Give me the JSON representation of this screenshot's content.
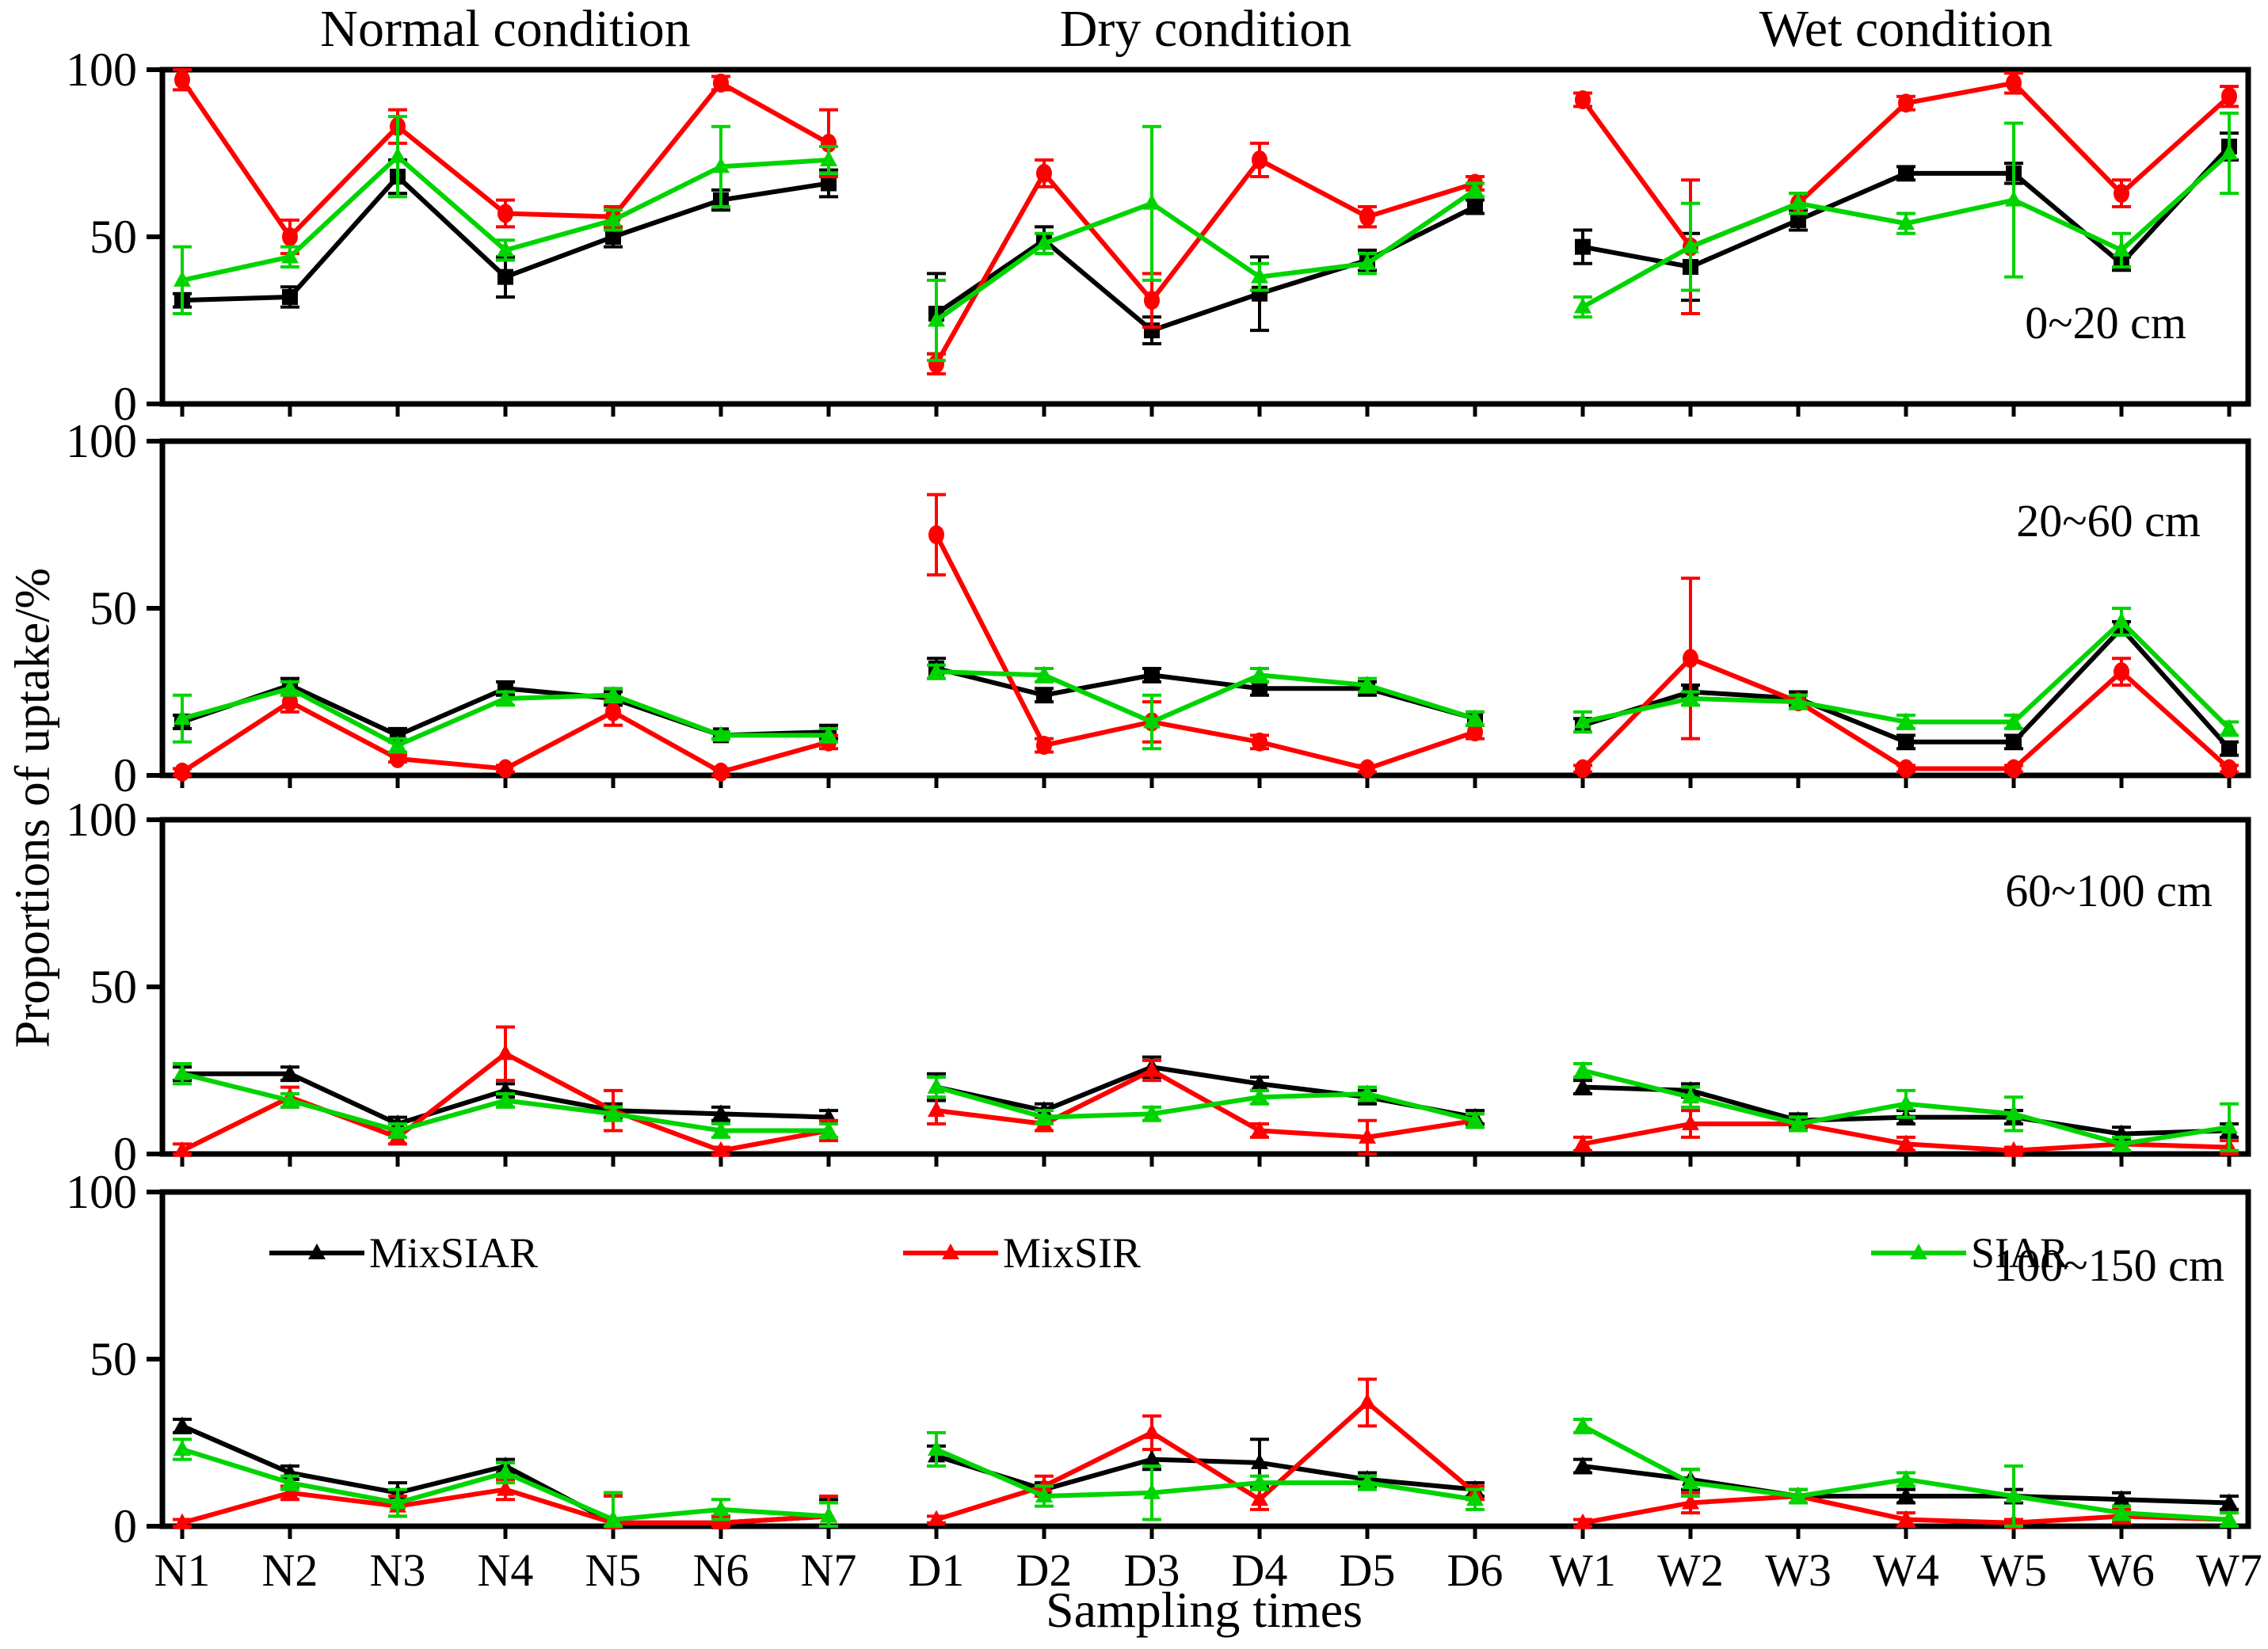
{
  "figure": {
    "ylabel": "Proportions of uptake/%",
    "xlabel": "Sampling times",
    "condition_titles": [
      "Normal condition",
      "Dry condition",
      "Wet condition"
    ],
    "axis_color": "#000000",
    "background": "#ffffff"
  },
  "legend": {
    "items": [
      {
        "label": "MixSIAR",
        "color": "#000000"
      },
      {
        "label": "MixSIR",
        "color": "#ff0000"
      },
      {
        "label": "SIAR",
        "color": "#00d400"
      }
    ]
  },
  "chart_data": [
    {
      "type": "line",
      "depth_label": "0~20 cm",
      "ylim": [
        0,
        100
      ],
      "yticks": [
        0,
        50,
        100
      ],
      "grid": false,
      "categories": [
        "N1",
        "N2",
        "N3",
        "N4",
        "N5",
        "N6",
        "N7",
        "D1",
        "D2",
        "D3",
        "D4",
        "D5",
        "D6",
        "W1",
        "W2",
        "W3",
        "W4",
        "W5",
        "W6",
        "W7"
      ],
      "groups": [
        [
          0,
          7
        ],
        [
          7,
          13
        ],
        [
          13,
          20
        ]
      ],
      "series": [
        {
          "name": "MixSIAR",
          "color": "#000000",
          "marker": "square",
          "values": [
            31,
            32,
            68,
            38,
            50,
            61,
            66,
            27,
            49,
            22,
            33,
            43,
            59,
            47,
            41,
            55,
            69,
            69,
            42,
            77
          ],
          "errors": [
            2,
            3,
            5,
            6,
            3,
            3,
            4,
            12,
            4,
            4,
            11,
            3,
            2,
            5,
            10,
            3,
            2,
            3,
            2,
            4
          ]
        },
        {
          "name": "MixSIR",
          "color": "#ff0000",
          "marker": "circle",
          "values": [
            97,
            50,
            83,
            57,
            56,
            96,
            78,
            12,
            69,
            31,
            73,
            56,
            66,
            91,
            47,
            60,
            90,
            96,
            63,
            92
          ],
          "errors": [
            3,
            5,
            5,
            4,
            3,
            2,
            10,
            3,
            4,
            8,
            5,
            3,
            2,
            2,
            20,
            3,
            2,
            3,
            4,
            3
          ]
        },
        {
          "name": "SIAR",
          "color": "#00d400",
          "marker": "triangle",
          "values": [
            37,
            44,
            74,
            46,
            55,
            71,
            73,
            25,
            48,
            60,
            38,
            42,
            64,
            29,
            47,
            60,
            54,
            61,
            46,
            75
          ],
          "errors": [
            10,
            3,
            12,
            3,
            3,
            12,
            4,
            12,
            3,
            23,
            4,
            3,
            2,
            3,
            13,
            3,
            3,
            23,
            5,
            12
          ]
        }
      ]
    },
    {
      "type": "line",
      "depth_label": "20~60 cm",
      "ylim": [
        0,
        100
      ],
      "yticks": [
        0,
        50,
        100
      ],
      "grid": false,
      "categories": [
        "N1",
        "N2",
        "N3",
        "N4",
        "N5",
        "N6",
        "N7",
        "D1",
        "D2",
        "D3",
        "D4",
        "D5",
        "D6",
        "W1",
        "W2",
        "W3",
        "W4",
        "W5",
        "W6",
        "W7"
      ],
      "groups": [
        [
          0,
          7
        ],
        [
          7,
          13
        ],
        [
          13,
          20
        ]
      ],
      "series": [
        {
          "name": "MixSIAR",
          "color": "#000000",
          "marker": "square",
          "values": [
            16,
            27,
            12,
            26,
            23,
            12,
            13,
            32,
            24,
            30,
            26,
            26,
            17,
            15,
            25,
            23,
            10,
            10,
            44,
            8
          ],
          "errors": [
            2,
            2,
            2,
            2,
            2,
            1,
            2,
            3,
            2,
            2,
            2,
            2,
            2,
            2,
            2,
            2,
            2,
            2,
            2,
            2
          ]
        },
        {
          "name": "MixSIR",
          "color": "#ff0000",
          "marker": "circle",
          "values": [
            1,
            22,
            5,
            2,
            19,
            1,
            10,
            72,
            9,
            16,
            10,
            2,
            13,
            2,
            35,
            22,
            2,
            2,
            31,
            2
          ],
          "errors": [
            1,
            3,
            1,
            1,
            4,
            1,
            2,
            12,
            2,
            6,
            2,
            1,
            2,
            1,
            24,
            2,
            1,
            1,
            4,
            1
          ]
        },
        {
          "name": "SIAR",
          "color": "#00d400",
          "marker": "triangle",
          "values": [
            17,
            26,
            9,
            23,
            24,
            12,
            12,
            31,
            30,
            16,
            30,
            27,
            17,
            16,
            23,
            22,
            16,
            16,
            46,
            14
          ],
          "errors": [
            7,
            2,
            2,
            2,
            2,
            1,
            2,
            2,
            2,
            8,
            2,
            2,
            2,
            3,
            2,
            2,
            2,
            2,
            4,
            2
          ]
        }
      ]
    },
    {
      "type": "line",
      "depth_label": "60~100 cm",
      "ylim": [
        0,
        100
      ],
      "yticks": [
        0,
        50,
        100
      ],
      "grid": false,
      "categories": [
        "N1",
        "N2",
        "N3",
        "N4",
        "N5",
        "N6",
        "N7",
        "D1",
        "D2",
        "D3",
        "D4",
        "D5",
        "D6",
        "W1",
        "W2",
        "W3",
        "W4",
        "W5",
        "W6",
        "W7"
      ],
      "groups": [
        [
          0,
          7
        ],
        [
          7,
          13
        ],
        [
          13,
          20
        ]
      ],
      "series": [
        {
          "name": "MixSIAR",
          "color": "#000000",
          "marker": "triangle",
          "values": [
            24,
            24,
            9,
            19,
            13,
            12,
            11,
            20,
            13,
            26,
            21,
            17,
            11,
            20,
            19,
            10,
            11,
            11,
            6,
            7
          ],
          "errors": [
            2,
            2,
            2,
            2,
            2,
            2,
            2,
            4,
            2,
            3,
            2,
            2,
            2,
            2,
            2,
            2,
            2,
            2,
            2,
            2
          ]
        },
        {
          "name": "MixSIR",
          "color": "#ff0000",
          "marker": "triangle",
          "values": [
            1,
            17,
            5,
            30,
            13,
            1,
            7,
            13,
            9,
            25,
            7,
            5,
            10,
            3,
            9,
            9,
            3,
            1,
            3,
            2
          ],
          "errors": [
            2,
            3,
            2,
            8,
            6,
            1,
            3,
            4,
            2,
            3,
            2,
            5,
            2,
            2,
            4,
            2,
            2,
            1,
            2,
            2
          ]
        },
        {
          "name": "SIAR",
          "color": "#00d400",
          "marker": "triangle",
          "values": [
            24,
            16,
            7,
            16,
            12,
            7,
            7,
            20,
            11,
            12,
            17,
            18,
            10,
            25,
            17,
            9,
            15,
            12,
            3,
            8
          ],
          "errors": [
            3,
            2,
            2,
            2,
            2,
            2,
            2,
            3,
            2,
            2,
            2,
            2,
            2,
            2,
            3,
            2,
            4,
            5,
            2,
            7
          ]
        }
      ]
    },
    {
      "type": "line",
      "depth_label": "100~150 cm",
      "ylim": [
        0,
        100
      ],
      "yticks": [
        0,
        50,
        100
      ],
      "grid": false,
      "categories": [
        "N1",
        "N2",
        "N3",
        "N4",
        "N5",
        "N6",
        "N7",
        "D1",
        "D2",
        "D3",
        "D4",
        "D5",
        "D6",
        "W1",
        "W2",
        "W3",
        "W4",
        "W5",
        "W6",
        "W7"
      ],
      "groups": [
        [
          0,
          7
        ],
        [
          7,
          13
        ],
        [
          13,
          20
        ]
      ],
      "series": [
        {
          "name": "MixSIAR",
          "color": "#000000",
          "marker": "triangle",
          "values": [
            30,
            16,
            10,
            18,
            1,
            1,
            3,
            21,
            11,
            20,
            19,
            14,
            11,
            18,
            14,
            9,
            9,
            9,
            8,
            7
          ],
          "errors": [
            2,
            2,
            3,
            2,
            9,
            2,
            5,
            3,
            2,
            3,
            7,
            2,
            2,
            2,
            3,
            2,
            2,
            2,
            2,
            2
          ]
        },
        {
          "name": "MixSIR",
          "color": "#ff0000",
          "marker": "triangle",
          "values": [
            1,
            10,
            6,
            11,
            1,
            1,
            3,
            2,
            12,
            28,
            8,
            37,
            10,
            1,
            7,
            9,
            2,
            1,
            3,
            2
          ],
          "errors": [
            1,
            2,
            3,
            3,
            8,
            2,
            6,
            1,
            3,
            5,
            3,
            7,
            2,
            1,
            3,
            2,
            2,
            1,
            2,
            2
          ]
        },
        {
          "name": "SIAR",
          "color": "#00d400",
          "marker": "triangle",
          "values": [
            23,
            13,
            7,
            16,
            2,
            5,
            3,
            23,
            9,
            10,
            13,
            13,
            8,
            30,
            13,
            9,
            14,
            9,
            4,
            2
          ],
          "errors": [
            3,
            2,
            4,
            3,
            8,
            3,
            4,
            5,
            3,
            8,
            2,
            2,
            3,
            2,
            4,
            2,
            2,
            9,
            2,
            2
          ]
        }
      ]
    }
  ]
}
